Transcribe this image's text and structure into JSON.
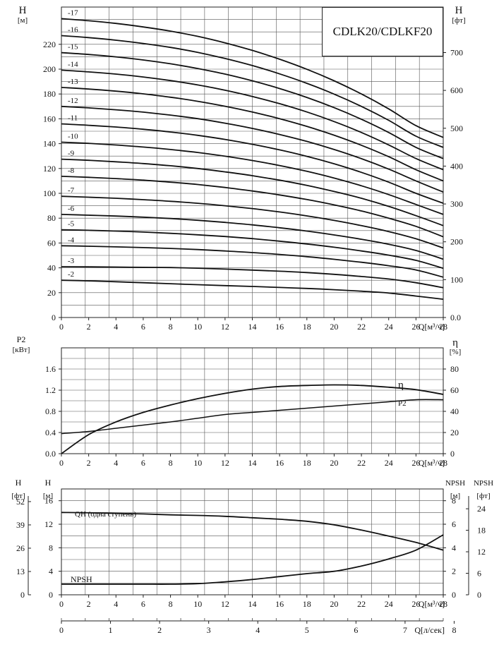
{
  "chart_data": [
    {
      "type": "line",
      "title": "CDLK20/CDLKF20",
      "xlabel": "Q[м³/ч]",
      "ylabel_left": "H",
      "ylabel_left_unit": "[м]",
      "ylabel_right": "H",
      "ylabel_right_unit": "[фт]",
      "xlim": [
        0,
        28
      ],
      "ylim": [
        0,
        240
      ],
      "xticks": [
        0,
        2,
        4,
        6,
        8,
        10,
        12,
        14,
        16,
        18,
        20,
        22,
        24,
        26,
        28
      ],
      "yticks_left": [
        0,
        20,
        40,
        60,
        80,
        100,
        120,
        140,
        160,
        180,
        200,
        220
      ],
      "yticks_right": [
        "0.0",
        "100",
        "200",
        "300",
        "400",
        "500",
        "600",
        "700"
      ],
      "grid": true,
      "x": [
        0,
        2,
        4,
        6,
        8,
        10,
        12,
        14,
        16,
        18,
        20,
        22,
        24,
        26,
        28
      ],
      "series": [
        {
          "name": "-2",
          "values": [
            30,
            29.5,
            28.8,
            28,
            27.2,
            26.4,
            25.7,
            25,
            24.2,
            23.4,
            22.4,
            21.2,
            19.7,
            17.3,
            14.7
          ]
        },
        {
          "name": "-3",
          "values": [
            40.9,
            40.8,
            40.6,
            40.4,
            40.2,
            39.7,
            39,
            38.2,
            37.3,
            36.2,
            34.8,
            33,
            31,
            28,
            24
          ]
        },
        {
          "name": "-4",
          "values": [
            57.8,
            57.4,
            56.9,
            56.3,
            55.6,
            54.7,
            53.6,
            52.3,
            50.8,
            49,
            46.9,
            44.5,
            41.7,
            38.3,
            32.5
          ]
        },
        {
          "name": "-5",
          "values": [
            70.7,
            70.2,
            69.6,
            68.8,
            67.8,
            66.6,
            65.2,
            63.5,
            61.5,
            59.2,
            56.6,
            53.6,
            50.2,
            46,
            39.6
          ]
        },
        {
          "name": "-6",
          "values": [
            83,
            82.4,
            81.7,
            80.8,
            79.7,
            78.3,
            76.6,
            74.6,
            72.3,
            69.6,
            66.5,
            63,
            59,
            54,
            47
          ]
        },
        {
          "name": "-7",
          "values": [
            97.6,
            96.9,
            96,
            94.9,
            93.6,
            92,
            90,
            87.7,
            85,
            81.8,
            78.2,
            74,
            69.2,
            63.4,
            56
          ]
        },
        {
          "name": "-8",
          "values": [
            113.7,
            112.9,
            111.9,
            110.6,
            109,
            107.1,
            104.7,
            101.9,
            98.7,
            95,
            90.7,
            85.8,
            80,
            73.4,
            65
          ]
        },
        {
          "name": "-9",
          "values": [
            127.5,
            126.6,
            125.4,
            124,
            122.2,
            120,
            117.3,
            114.2,
            110.6,
            106.4,
            101.5,
            96,
            89.5,
            82,
            74
          ]
        },
        {
          "name": "-10",
          "values": [
            141.2,
            140.2,
            138.9,
            137.3,
            135.3,
            132.9,
            129.9,
            126.4,
            122.4,
            117.7,
            112.3,
            106.1,
            99,
            91,
            83
          ]
        },
        {
          "name": "-11",
          "values": [
            155.9,
            154.8,
            153.4,
            151.6,
            149.4,
            146.7,
            143.4,
            139.5,
            135,
            129.8,
            123.8,
            116.9,
            109,
            100,
            92
          ]
        },
        {
          "name": "-12",
          "values": [
            170,
            168.8,
            167.3,
            165.4,
            163,
            160.1,
            156.5,
            152.3,
            147.4,
            141.8,
            135.3,
            127.9,
            119.5,
            110,
            101
          ]
        },
        {
          "name": "-13",
          "values": [
            185.3,
            184,
            182.3,
            180.1,
            177.4,
            174.1,
            170.1,
            165.5,
            160.1,
            153.9,
            146.8,
            138.7,
            129.5,
            119,
            110
          ]
        },
        {
          "name": "-14",
          "values": [
            199.2,
            197.8,
            196,
            193.7,
            190.8,
            187.3,
            183,
            178,
            172.2,
            165.5,
            157.8,
            149,
            139,
            128,
            119
          ]
        },
        {
          "name": "-15",
          "values": [
            213.3,
            211.8,
            209.9,
            207.4,
            204.3,
            200.5,
            196,
            190.6,
            184.4,
            177.2,
            169,
            159.6,
            149,
            137,
            128
          ]
        },
        {
          "name": "-16",
          "values": [
            227,
            225.4,
            223.3,
            220.7,
            217.5,
            213.5,
            208.6,
            202.9,
            196.2,
            188.6,
            179.9,
            170,
            158.8,
            146,
            137
          ]
        },
        {
          "name": "-17",
          "values": [
            240.7,
            239,
            236.8,
            234,
            230.6,
            226.4,
            221.2,
            215.1,
            208,
            199.9,
            190.6,
            180,
            168,
            154.5,
            145
          ]
        }
      ]
    },
    {
      "type": "line",
      "xlabel": "Q[м³/ч]",
      "ylabel_left": "P2",
      "ylabel_left_unit": "[кВт]",
      "ylabel_right": "η",
      "ylabel_right_unit": "[%]",
      "xlim": [
        0,
        28
      ],
      "ylim_left": [
        0,
        2.0
      ],
      "ylim_right": [
        0,
        100
      ],
      "xticks": [
        0,
        2,
        4,
        6,
        8,
        10,
        12,
        14,
        16,
        18,
        20,
        22,
        24,
        26,
        28
      ],
      "yticks_left": [
        "0.0",
        "0.4",
        "0.8",
        "1.2",
        "1.6"
      ],
      "yticks_right": [
        "0",
        "20",
        "40",
        "60",
        "80"
      ],
      "grid": true,
      "x": [
        0,
        2,
        4,
        6,
        8,
        10,
        12,
        14,
        16,
        18,
        20,
        22,
        24,
        26,
        28
      ],
      "series": [
        {
          "name": "η",
          "axis": "right",
          "values": [
            0,
            18,
            30,
            39,
            46,
            52,
            57,
            61,
            63.5,
            64.5,
            65,
            64.5,
            62.8,
            60.5,
            56
          ]
        },
        {
          "name": "P2",
          "axis": "left",
          "values": [
            0.38,
            0.42,
            0.48,
            0.54,
            0.6,
            0.67,
            0.74,
            0.78,
            0.82,
            0.86,
            0.9,
            0.94,
            0.98,
            1.02,
            1.02
          ]
        }
      ]
    },
    {
      "type": "line",
      "xlabel": "Q[м³/ч]",
      "x2label": "Q[л/сек]",
      "ylabel_left_ft": "H",
      "ylabel_left_ft_unit": "[фт]",
      "ylabel_left_m": "H",
      "ylabel_left_m_unit": "[м]",
      "ylabel_right_m": "NPSH",
      "ylabel_right_m_unit": "[м]",
      "ylabel_right_ft": "NPSH",
      "ylabel_right_ft_unit": "[фт]",
      "xlim": [
        0,
        28
      ],
      "ylim": [
        0,
        18
      ],
      "xticks": [
        0,
        2,
        4,
        6,
        8,
        10,
        12,
        14,
        16,
        18,
        20,
        22,
        24,
        26,
        28
      ],
      "x2ticks": [
        "0",
        "1",
        "2",
        "3",
        "4",
        "5",
        "6",
        "7",
        "8"
      ],
      "yticks_left_ft": [
        "0",
        "13",
        "26",
        "39",
        "52"
      ],
      "yticks_left_m": [
        "0",
        "4",
        "8",
        "12",
        "16"
      ],
      "yticks_right_m": [
        "0",
        "2",
        "4",
        "6",
        "8"
      ],
      "yticks_right_ft": [
        "0",
        "6",
        "12",
        "18",
        "24"
      ],
      "grid": true,
      "x": [
        0,
        2,
        4,
        6,
        8,
        10,
        12,
        14,
        16,
        18,
        20,
        22,
        24,
        26,
        28
      ],
      "series": [
        {
          "name": "QH (одна ступень)",
          "axis": "left_m",
          "values": [
            14,
            13.95,
            13.85,
            13.75,
            13.6,
            13.5,
            13.35,
            13.1,
            12.85,
            12.5,
            11.9,
            11,
            10,
            8.9,
            7.6
          ]
        },
        {
          "name": "NPSH",
          "axis": "left_m",
          "values": [
            1.8,
            1.8,
            1.8,
            1.8,
            1.8,
            1.9,
            2.2,
            2.6,
            3.1,
            3.6,
            4.0,
            4.9,
            6.1,
            7.6,
            10.2
          ]
        }
      ]
    }
  ]
}
